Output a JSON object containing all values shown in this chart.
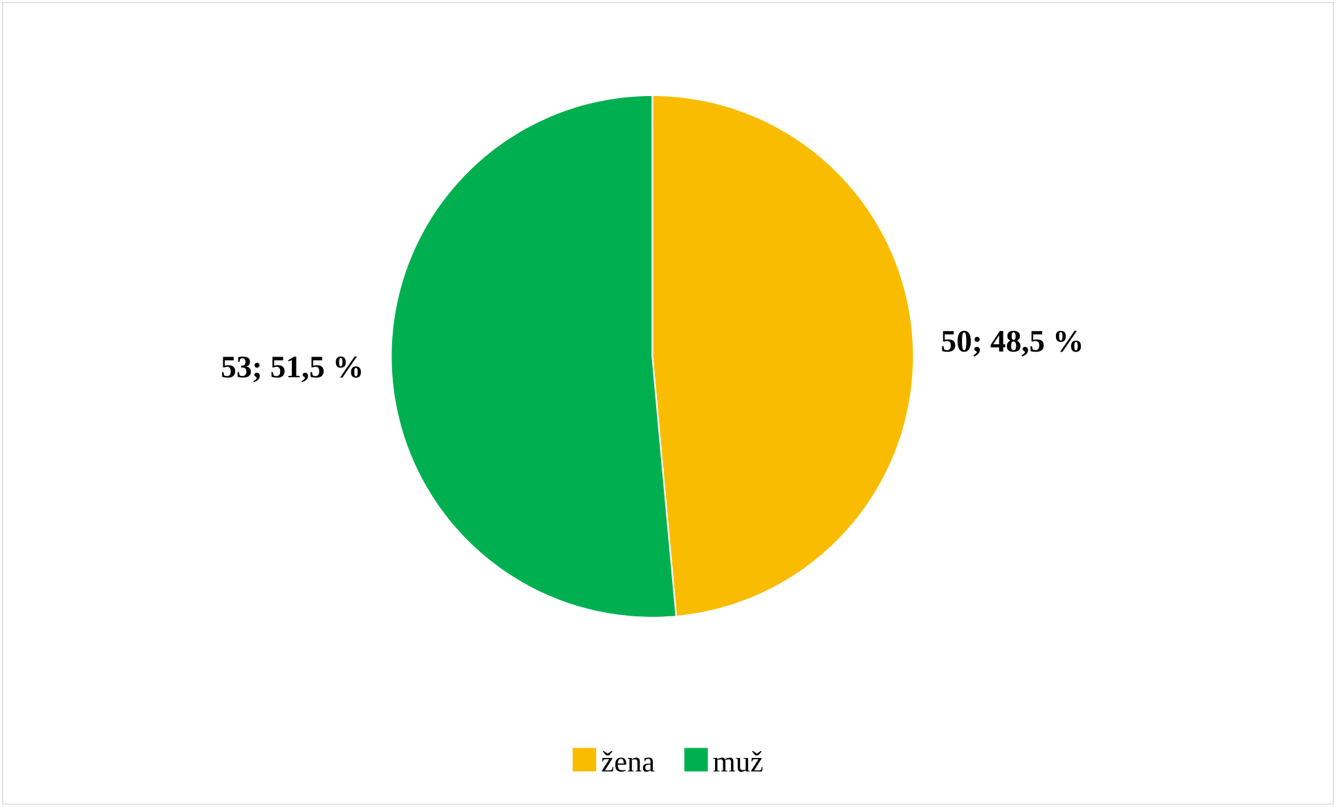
{
  "chart_data": {
    "type": "pie",
    "categories": [
      "žena",
      "muž"
    ],
    "values": [
      50,
      53
    ],
    "colors": [
      "#f9bc00",
      "#00b050"
    ],
    "value_labels": [
      "50; 48,5 %",
      "53; 51,5 %"
    ],
    "legend": "bottom"
  }
}
